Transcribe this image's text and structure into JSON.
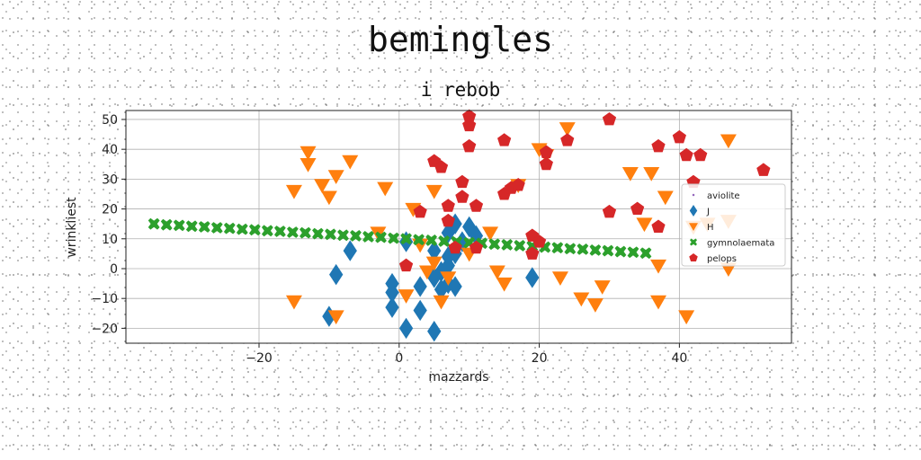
{
  "chart_data": {
    "type": "scatter",
    "title": "bemingles",
    "subtitle": "i rebob",
    "xlabel": "mazzards",
    "ylabel": "wrinkliest",
    "xlim": [
      -39,
      56
    ],
    "ylim": [
      -25,
      53
    ],
    "xticks": [
      -20,
      0,
      20,
      40
    ],
    "yticks": [
      -20,
      -10,
      0,
      10,
      20,
      30,
      40,
      50
    ],
    "grid": true,
    "legend_position": "right",
    "series": [
      {
        "name": "aviolite",
        "marker": "point",
        "color": "#9467bd",
        "points": []
      },
      {
        "name": "J",
        "marker": "diamond",
        "color": "#1f77b4",
        "points": [
          [
            -7,
            6
          ],
          [
            -9,
            -2
          ],
          [
            -10,
            -16
          ],
          [
            -1,
            -5
          ],
          [
            -1,
            -13
          ],
          [
            -1,
            -8
          ],
          [
            1,
            -20
          ],
          [
            1,
            9
          ],
          [
            3,
            -14
          ],
          [
            3,
            -6
          ],
          [
            5,
            -21
          ],
          [
            5,
            -3
          ],
          [
            5,
            6
          ],
          [
            6,
            -1
          ],
          [
            6,
            -7
          ],
          [
            7,
            -5
          ],
          [
            7,
            1
          ],
          [
            7,
            4
          ],
          [
            7,
            12
          ],
          [
            8,
            -6
          ],
          [
            8,
            5
          ],
          [
            8,
            15
          ],
          [
            9,
            9
          ],
          [
            10,
            14
          ],
          [
            11,
            11
          ],
          [
            19,
            -3
          ]
        ]
      },
      {
        "name": "H",
        "marker": "triangle-down",
        "color": "#ff7f0e",
        "points": [
          [
            -15,
            26
          ],
          [
            -13,
            39
          ],
          [
            -13,
            35
          ],
          [
            -11,
            28
          ],
          [
            -10,
            24
          ],
          [
            -9,
            31
          ],
          [
            -7,
            36
          ],
          [
            -15,
            -11
          ],
          [
            -9,
            -16
          ],
          [
            -2,
            27
          ],
          [
            -3,
            12
          ],
          [
            1,
            -9
          ],
          [
            2,
            20
          ],
          [
            3,
            8
          ],
          [
            4,
            -1
          ],
          [
            5,
            26
          ],
          [
            5,
            2
          ],
          [
            6,
            -11
          ],
          [
            7,
            -3
          ],
          [
            10,
            5
          ],
          [
            13,
            12
          ],
          [
            14,
            -1
          ],
          [
            15,
            -5
          ],
          [
            17,
            28
          ],
          [
            20,
            40
          ],
          [
            21,
            38
          ],
          [
            23,
            -3
          ],
          [
            24,
            47
          ],
          [
            26,
            -10
          ],
          [
            28,
            -12
          ],
          [
            29,
            -6
          ],
          [
            33,
            32
          ],
          [
            35,
            15
          ],
          [
            36,
            32
          ],
          [
            37,
            1
          ],
          [
            37,
            -11
          ],
          [
            38,
            24
          ],
          [
            41,
            -16
          ],
          [
            42,
            14
          ],
          [
            44,
            15
          ],
          [
            47,
            16
          ],
          [
            47,
            43
          ],
          [
            47,
            0
          ]
        ]
      },
      {
        "name": "gymnolaemata",
        "marker": "x",
        "color": "#2ca02c",
        "points": [
          [
            -35,
            15
          ],
          [
            -33.2,
            14.7
          ],
          [
            -31.4,
            14.5
          ],
          [
            -29.6,
            14.2
          ],
          [
            -27.8,
            14
          ],
          [
            -26,
            13.7
          ],
          [
            -24.2,
            13.5
          ],
          [
            -22.4,
            13.2
          ],
          [
            -20.6,
            13
          ],
          [
            -18.8,
            12.7
          ],
          [
            -17,
            12.5
          ],
          [
            -15.2,
            12.2
          ],
          [
            -13.4,
            12
          ],
          [
            -11.6,
            11.7
          ],
          [
            -9.8,
            11.5
          ],
          [
            -8,
            11.2
          ],
          [
            -6.2,
            11
          ],
          [
            -4.4,
            10.7
          ],
          [
            -2.6,
            10.5
          ],
          [
            -0.8,
            10.2
          ],
          [
            1,
            10
          ],
          [
            2.8,
            9.7
          ],
          [
            4.6,
            9.5
          ],
          [
            6.4,
            9.2
          ],
          [
            8.2,
            9
          ],
          [
            10,
            8.7
          ],
          [
            11.8,
            8.5
          ],
          [
            13.6,
            8.2
          ],
          [
            15.4,
            8
          ],
          [
            17.2,
            7.7
          ],
          [
            19,
            7.5
          ],
          [
            20.8,
            7.2
          ],
          [
            22.6,
            7
          ],
          [
            24.4,
            6.7
          ],
          [
            26.2,
            6.5
          ],
          [
            28,
            6.2
          ],
          [
            29.8,
            6
          ],
          [
            31.6,
            5.7
          ],
          [
            33.4,
            5.5
          ],
          [
            35.2,
            5.2
          ]
        ]
      },
      {
        "name": "pelops",
        "marker": "pentagon",
        "color": "#d62728",
        "points": [
          [
            1,
            1
          ],
          [
            3,
            19
          ],
          [
            5,
            36
          ],
          [
            6,
            34
          ],
          [
            7,
            21
          ],
          [
            7,
            16
          ],
          [
            8,
            7
          ],
          [
            9,
            24
          ],
          [
            9,
            29
          ],
          [
            10,
            41
          ],
          [
            10,
            51
          ],
          [
            10,
            48
          ],
          [
            11,
            21
          ],
          [
            11,
            7
          ],
          [
            15,
            43
          ],
          [
            15,
            25
          ],
          [
            16,
            27
          ],
          [
            17,
            28
          ],
          [
            19,
            11
          ],
          [
            19,
            5
          ],
          [
            20,
            9
          ],
          [
            21,
            39
          ],
          [
            21,
            35
          ],
          [
            24,
            43
          ],
          [
            30,
            50
          ],
          [
            30,
            19
          ],
          [
            34,
            20
          ],
          [
            37,
            41
          ],
          [
            37,
            14
          ],
          [
            40,
            44
          ],
          [
            41,
            38
          ],
          [
            42,
            29
          ],
          [
            43,
            38
          ],
          [
            52,
            33
          ]
        ]
      }
    ]
  }
}
